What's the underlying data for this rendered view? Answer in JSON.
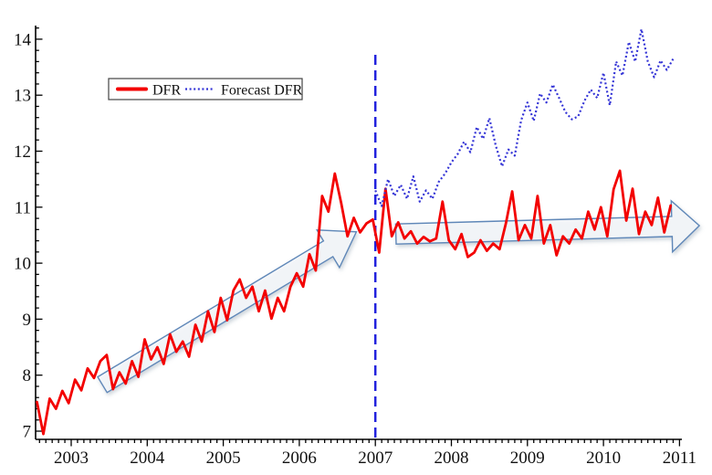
{
  "chart_data": {
    "type": "line",
    "title": "",
    "xlabel": "",
    "ylabel": "",
    "xlim": [
      2002.54,
      2011.05
    ],
    "ylim": [
      6.95,
      14.25
    ],
    "x_ticks": [
      2003,
      2004,
      2005,
      2006,
      2007,
      2008,
      2009,
      2010,
      2011
    ],
    "y_ticks": [
      7,
      8,
      9,
      10,
      11,
      12,
      13,
      14
    ],
    "x_minor_step_years": 0.083333,
    "y_minor_step": 0.2,
    "grid": false,
    "legend": {
      "position": "inside-top-left",
      "entries": [
        "DFR",
        "Forecast DFR"
      ]
    },
    "series": [
      {
        "name": "DFR",
        "color": "#f30000",
        "line_style": "solid",
        "line_width": 2.8,
        "t_start": 2002.55,
        "t_step_years": 0.083333,
        "values": [
          7.52,
          6.95,
          7.58,
          7.4,
          7.72,
          7.5,
          7.92,
          7.73,
          8.12,
          7.95,
          8.25,
          8.36,
          7.75,
          8.05,
          7.85,
          8.25,
          7.97,
          8.64,
          8.28,
          8.5,
          8.2,
          8.73,
          8.42,
          8.6,
          8.33,
          8.9,
          8.6,
          9.14,
          8.77,
          9.38,
          8.98,
          9.51,
          9.71,
          9.38,
          9.58,
          9.14,
          9.51,
          9.01,
          9.38,
          9.14,
          9.58,
          9.82,
          9.58,
          10.16,
          9.87,
          11.2,
          10.92,
          11.6,
          11.08,
          10.48,
          10.81,
          10.55,
          10.71,
          10.78,
          10.19,
          11.33,
          10.48,
          10.73,
          10.44,
          10.57,
          10.35,
          10.47,
          10.39,
          10.44,
          11.1,
          10.41,
          10.25,
          10.52,
          10.11,
          10.19,
          10.41,
          10.22,
          10.35,
          10.25,
          10.71,
          11.28,
          10.41,
          10.68,
          10.44,
          11.2,
          10.35,
          10.68,
          10.14,
          10.48,
          10.35,
          10.6,
          10.44,
          10.92,
          10.6,
          11.0,
          10.48,
          11.32,
          11.65,
          10.76,
          11.33,
          10.52,
          10.92,
          10.68,
          11.17,
          10.55,
          11.03
        ]
      },
      {
        "name": "Forecast DFR",
        "color": "#3434d6",
        "line_style": "dotted",
        "line_width": 2.2,
        "t_start": 2007.0,
        "t_step_years": 0.083333,
        "values": [
          11.3,
          11.02,
          11.5,
          11.2,
          11.4,
          11.15,
          11.55,
          11.1,
          11.3,
          11.15,
          11.45,
          11.6,
          11.8,
          11.95,
          12.17,
          11.98,
          12.43,
          12.22,
          12.59,
          12.1,
          11.73,
          12.03,
          11.92,
          12.55,
          12.87,
          12.54,
          13.03,
          12.87,
          13.19,
          12.95,
          12.7,
          12.57,
          12.62,
          12.9,
          13.1,
          12.95,
          13.4,
          12.82,
          13.6,
          13.35,
          13.95,
          13.6,
          14.18,
          13.6,
          13.32,
          13.62,
          13.45,
          13.65
        ]
      }
    ],
    "annotations": {
      "forecast_start_line": {
        "x": 2007,
        "color": "#2222dd",
        "style": "dashed"
      },
      "trend_arrows": [
        {
          "name": "rising-trend-arrow",
          "tail": [
            2003.41,
            7.83
          ],
          "tip": [
            2006.75,
            10.56
          ]
        },
        {
          "name": "flat-trend-arrow",
          "tail": [
            2007.27,
            10.52
          ],
          "tip": [
            2011.26,
            10.67
          ]
        }
      ],
      "arrow_stroke": "#5e87b8",
      "arrow_fill": "#f4f6fa"
    }
  }
}
